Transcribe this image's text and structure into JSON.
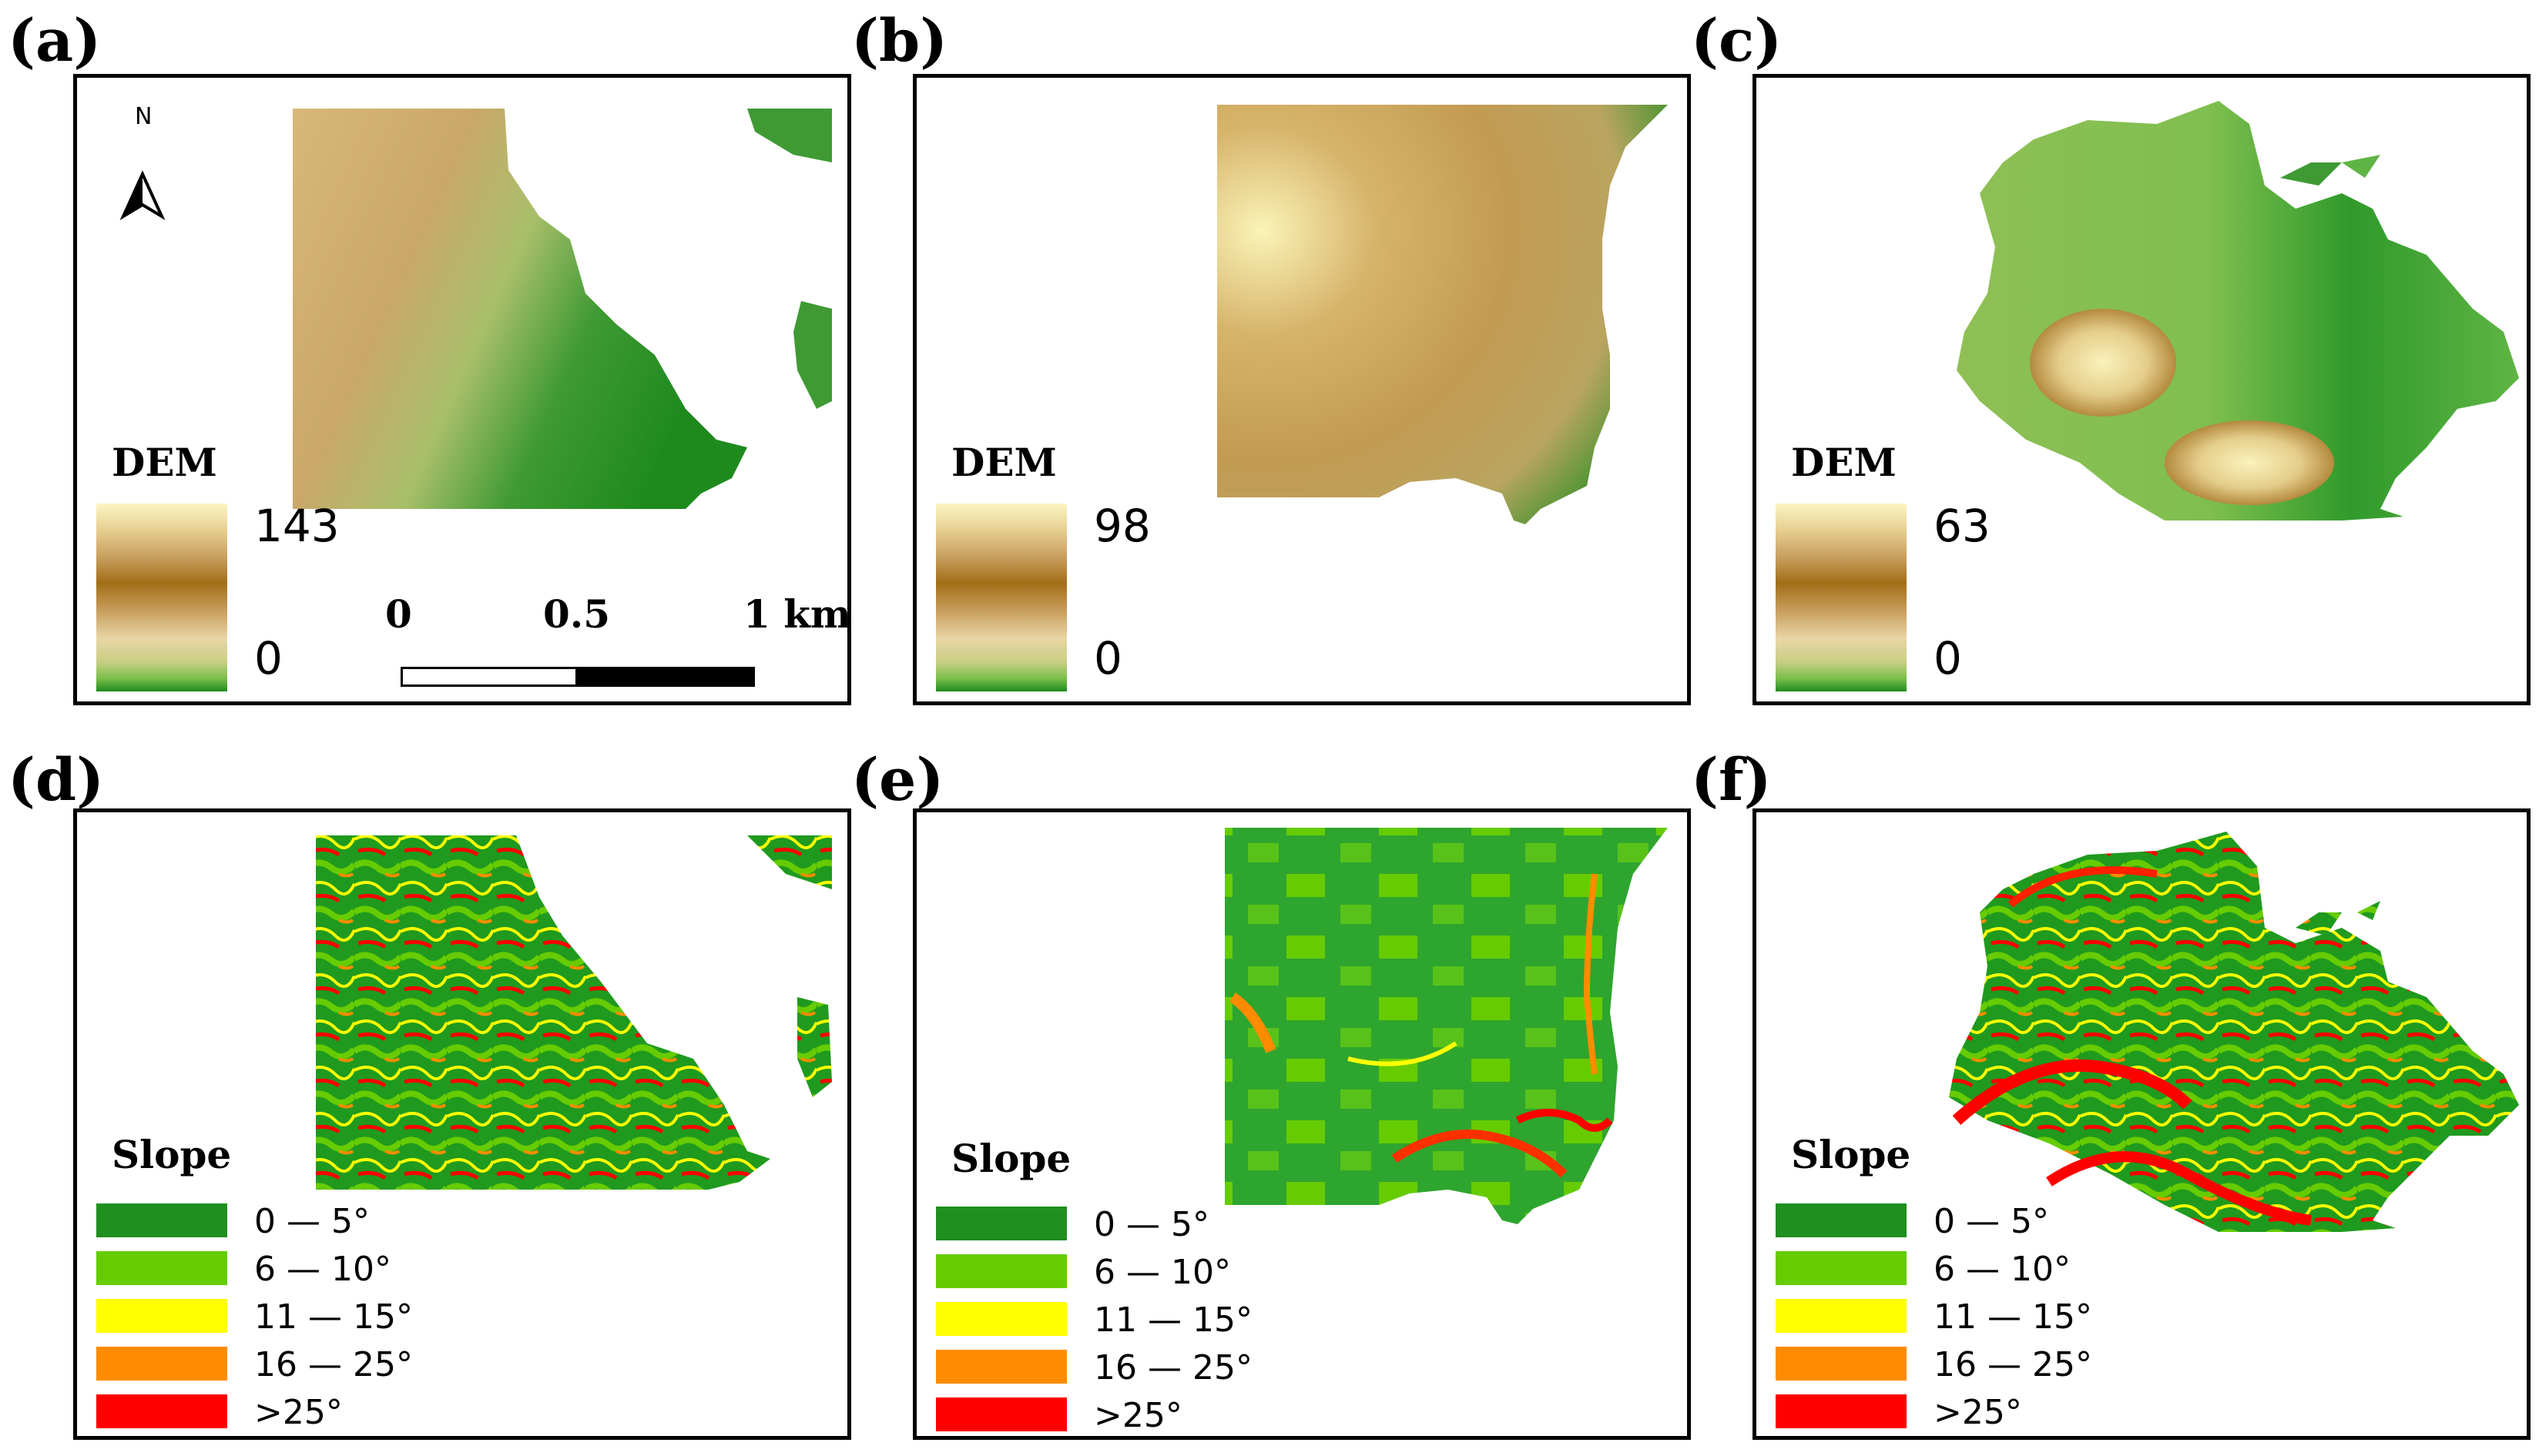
{
  "panels": {
    "a": {
      "label": "(a)",
      "legend_title": "DEM",
      "max": "143",
      "min": "0"
    },
    "b": {
      "label": "(b)",
      "legend_title": "DEM",
      "max": "98",
      "min": "0"
    },
    "c": {
      "label": "(c)",
      "legend_title": "DEM",
      "max": "63",
      "min": "0"
    },
    "d": {
      "label": "(d)",
      "legend_title": "Slope"
    },
    "e": {
      "label": "(e)",
      "legend_title": "Slope"
    },
    "f": {
      "label": "(f)",
      "legend_title": "Slope"
    }
  },
  "north_label": "N",
  "scale": {
    "l0": "0",
    "l1": "0.5",
    "l2": "1 km"
  },
  "slope_classes": [
    {
      "label": "0 — 5°",
      "color": "#1f8f1f"
    },
    {
      "label": "6 — 10°",
      "color": "#66cc00"
    },
    {
      "label": "11 — 15°",
      "color": "#ffff00"
    },
    {
      "label": "16 — 25°",
      "color": "#ff8c00"
    },
    {
      "label": ">25°",
      "color": "#ff0000"
    }
  ],
  "colors": {
    "dem_high": "#fbf5c4",
    "dem_mid": "#a26e17",
    "dem_low": "#1f8a1f"
  }
}
